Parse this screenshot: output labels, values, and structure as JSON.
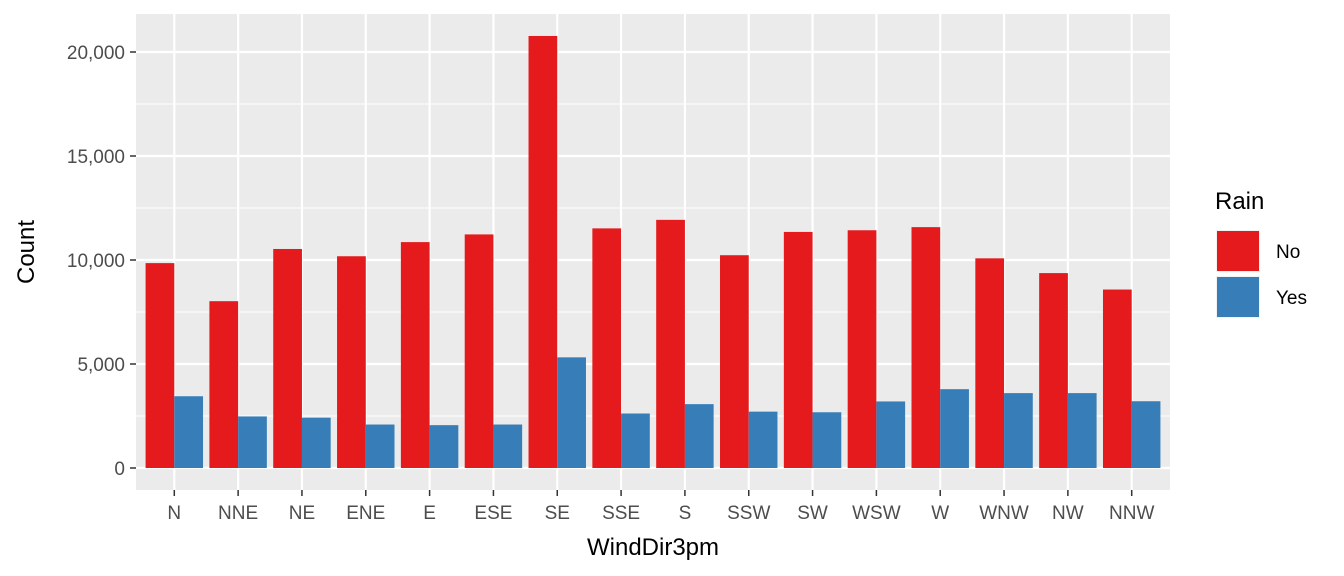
{
  "chart_data": {
    "type": "bar",
    "xlabel": "WindDir3pm",
    "ylabel": "Count",
    "categories": [
      "N",
      "NNE",
      "NE",
      "ENE",
      "E",
      "ESE",
      "SE",
      "SSE",
      "S",
      "SSW",
      "SW",
      "WSW",
      "W",
      "WNW",
      "NW",
      "NNW"
    ],
    "series": [
      {
        "name": "No",
        "color": "#E41A1C",
        "values": [
          9850,
          8020,
          10530,
          10180,
          10860,
          11230,
          20770,
          11520,
          11930,
          10230,
          11350,
          11430,
          11580,
          10080,
          9370,
          8580
        ]
      },
      {
        "name": "Yes",
        "color": "#377EB8",
        "values": [
          3450,
          2480,
          2420,
          2090,
          2060,
          2090,
          5320,
          2620,
          3070,
          2710,
          2680,
          3200,
          3790,
          3600,
          3600,
          3210
        ]
      }
    ],
    "ylim": [
      0,
      22000
    ],
    "yticks": [
      0,
      5000,
      10000,
      15000,
      20000
    ],
    "ytick_labels": [
      "0",
      "5,000",
      "10,000",
      "15,000",
      "20,000"
    ],
    "grid": true,
    "legend": {
      "title": "Rain",
      "position": "right"
    }
  }
}
